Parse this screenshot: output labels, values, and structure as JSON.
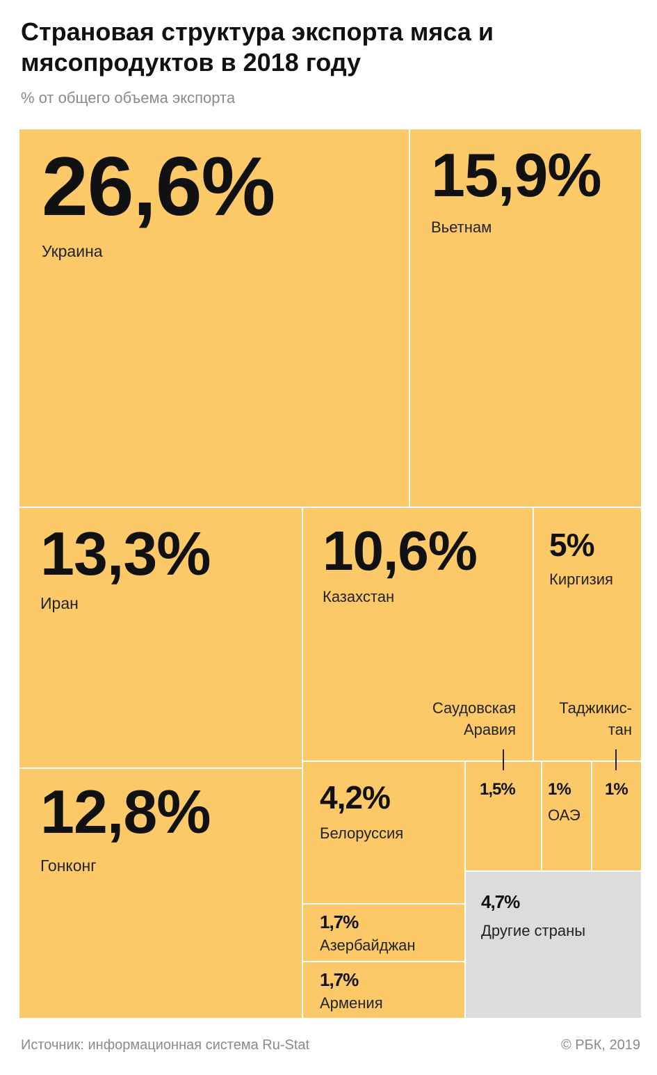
{
  "header": {
    "title": "Страновая структура экспорта мяса и мясопродуктов в 2018 году",
    "subtitle": "% от общего объема экспорта"
  },
  "chart_data": {
    "type": "treemap",
    "unit": "%",
    "items": [
      {
        "name": "Украина",
        "label": "26,6%",
        "value": 26.6
      },
      {
        "name": "Вьетнам",
        "label": "15,9%",
        "value": 15.9
      },
      {
        "name": "Иран",
        "label": "13,3%",
        "value": 13.3
      },
      {
        "name": "Казахстан",
        "label": "10,6%",
        "value": 10.6
      },
      {
        "name": "Киргизия",
        "label": "5%",
        "value": 5
      },
      {
        "name": "Гонконг",
        "label": "12,8%",
        "value": 12.8
      },
      {
        "name": "Белоруссия",
        "label": "4,2%",
        "value": 4.2
      },
      {
        "name": "Саудовская Аравия",
        "label": "1,5%",
        "value": 1.5
      },
      {
        "name": "ОАЭ",
        "label": "1%",
        "value": 1
      },
      {
        "name": "Таджикистан",
        "label": "1%",
        "value": 1
      },
      {
        "name": "Азербайджан",
        "label": "1,7%",
        "value": 1.7
      },
      {
        "name": "Армения",
        "label": "1,7%",
        "value": 1.7
      },
      {
        "name": "Другие страны",
        "label": "4,7%",
        "value": 4.7
      }
    ],
    "external_labels": [
      {
        "for": "Саудовская Аравия",
        "lines": [
          "Саудовская",
          "Аравия"
        ]
      },
      {
        "for": "Таджикистан",
        "lines": [
          "Таджикис-",
          "тан"
        ]
      }
    ],
    "colors": {
      "main": "#fcc968",
      "other": "#dcdcdc"
    }
  },
  "footer": {
    "source": "Источник: информационная система Ru-Stat",
    "copyright": "© РБК, 2019"
  }
}
